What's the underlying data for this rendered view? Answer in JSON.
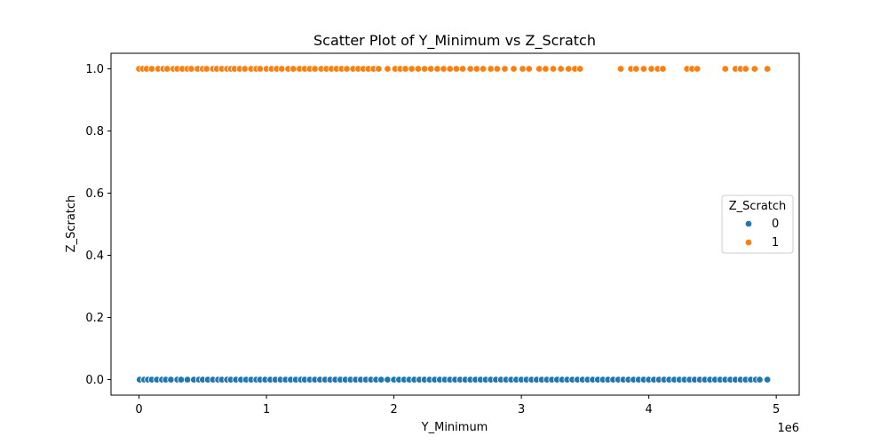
{
  "chart_data": {
    "type": "scatter",
    "title": "Scatter Plot of Y_Minimum vs Z_Scratch",
    "xlabel": "Y_Minimum",
    "ylabel": "Z_Scratch",
    "x_offset_label": "1e6",
    "xlim": [
      -220000,
      5180000
    ],
    "ylim": [
      -0.05,
      1.05
    ],
    "x_ticks": [
      0,
      1,
      2,
      3,
      4,
      5
    ],
    "x_tick_values": [
      0,
      1000000,
      2000000,
      3000000,
      4000000,
      5000000
    ],
    "y_ticks": [
      "0.0",
      "0.2",
      "0.4",
      "0.6",
      "0.8",
      "1.0"
    ],
    "y_tick_values": [
      0.0,
      0.2,
      0.4,
      0.6,
      0.8,
      1.0
    ],
    "grid": false,
    "legend": {
      "title": "Z_Scratch",
      "placement": "center-right"
    },
    "series": [
      {
        "name": "0",
        "color": "#1f77b4",
        "y": 0,
        "x": [
          5000,
          40000,
          70000,
          100000,
          140000,
          180000,
          210000,
          250000,
          300000,
          330000,
          380000,
          430000,
          470000,
          500000,
          540000,
          580000,
          620000,
          650000,
          690000,
          720000,
          760000,
          800000,
          840000,
          880000,
          920000,
          950000,
          990000,
          1030000,
          1070000,
          1110000,
          1150000,
          1190000,
          1230000,
          1270000,
          1300000,
          1340000,
          1380000,
          1420000,
          1460000,
          1500000,
          1540000,
          1580000,
          1620000,
          1660000,
          1700000,
          1740000,
          1780000,
          1820000,
          1860000,
          1900000,
          1950000,
          2000000,
          2040000,
          2080000,
          2120000,
          2160000,
          2200000,
          2240000,
          2280000,
          2320000,
          2360000,
          2400000,
          2440000,
          2480000,
          2520000,
          2560000,
          2600000,
          2640000,
          2680000,
          2720000,
          2760000,
          2800000,
          2840000,
          2880000,
          2920000,
          2960000,
          3000000,
          3040000,
          3080000,
          3120000,
          3160000,
          3200000,
          3240000,
          3280000,
          3320000,
          3360000,
          3400000,
          3440000,
          3480000,
          3520000,
          3560000,
          3600000,
          3640000,
          3680000,
          3720000,
          3760000,
          3800000,
          3840000,
          3880000,
          3920000,
          3960000,
          4000000,
          4040000,
          4080000,
          4120000,
          4160000,
          4200000,
          4240000,
          4280000,
          4320000,
          4360000,
          4400000,
          4440000,
          4480000,
          4520000,
          4560000,
          4600000,
          4640000,
          4680000,
          4720000,
          4760000,
          4800000,
          4840000,
          4870000,
          4930000
        ]
      },
      {
        "name": "1",
        "color": "#ff7f0e",
        "y": 1,
        "x": [
          0,
          30000,
          60000,
          100000,
          150000,
          190000,
          220000,
          270000,
          300000,
          340000,
          380000,
          410000,
          460000,
          500000,
          530000,
          580000,
          610000,
          650000,
          690000,
          720000,
          750000,
          790000,
          830000,
          880000,
          920000,
          950000,
          1000000,
          1040000,
          1080000,
          1120000,
          1170000,
          1210000,
          1260000,
          1300000,
          1340000,
          1380000,
          1430000,
          1470000,
          1510000,
          1550000,
          1590000,
          1630000,
          1680000,
          1720000,
          1760000,
          1800000,
          1840000,
          1880000,
          1950000,
          2010000,
          2050000,
          2090000,
          2140000,
          2190000,
          2240000,
          2290000,
          2340000,
          2390000,
          2440000,
          2490000,
          2540000,
          2600000,
          2650000,
          2700000,
          2760000,
          2810000,
          2870000,
          2940000,
          3010000,
          3060000,
          3140000,
          3190000,
          3250000,
          3310000,
          3370000,
          3420000,
          3460000,
          3780000,
          3860000,
          3900000,
          3960000,
          4020000,
          4070000,
          4110000,
          4300000,
          4340000,
          4380000,
          4600000,
          4680000,
          4720000,
          4760000,
          4830000,
          4930000
        ]
      }
    ]
  }
}
